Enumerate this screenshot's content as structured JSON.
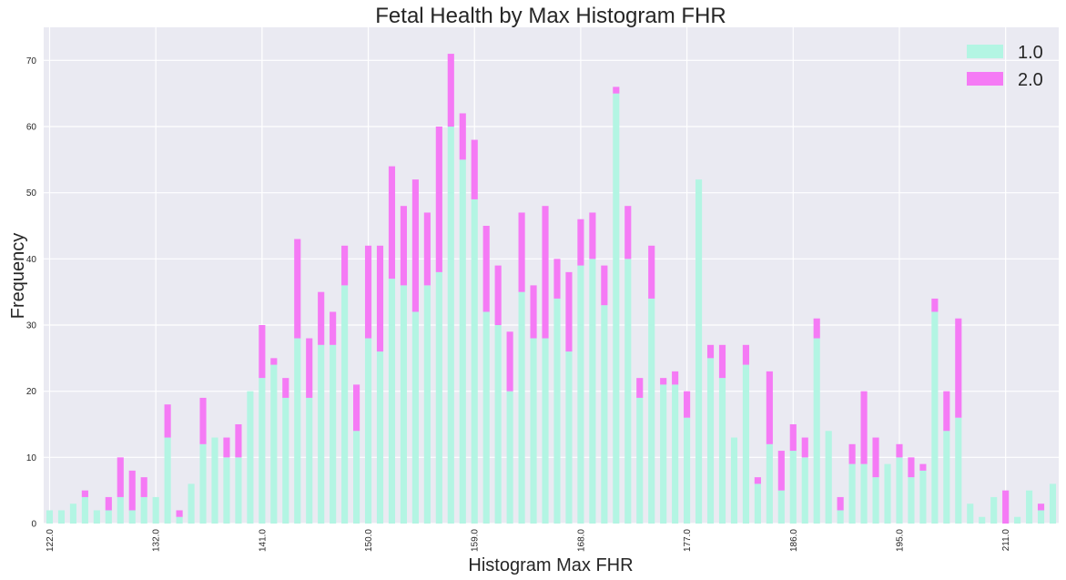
{
  "chart_data": {
    "type": "bar",
    "stacked": true,
    "title": "Fetal Health by Max Histogram FHR",
    "xlabel": "Histogram Max FHR",
    "ylabel": "Frequency",
    "ylim": [
      0,
      75
    ],
    "yticks": [
      0,
      10,
      20,
      30,
      40,
      50,
      60,
      70
    ],
    "grid": true,
    "legend_position": "top-right",
    "xtick_labels": [
      {
        "index": 0,
        "label": "122.0"
      },
      {
        "index": 9,
        "label": "132.0"
      },
      {
        "index": 18,
        "label": "141.0"
      },
      {
        "index": 27,
        "label": "150.0"
      },
      {
        "index": 36,
        "label": "159.0"
      },
      {
        "index": 45,
        "label": "168.0"
      },
      {
        "index": 54,
        "label": "177.0"
      },
      {
        "index": 63,
        "label": "186.0"
      },
      {
        "index": 72,
        "label": "195.0"
      },
      {
        "index": 81,
        "label": "211.0"
      }
    ],
    "series": [
      {
        "name": "1.0",
        "color": "#b3f5e3",
        "values": [
          2,
          2,
          3,
          4,
          2,
          2,
          4,
          2,
          4,
          4,
          13,
          1,
          6,
          12,
          13,
          10,
          10,
          20,
          22,
          24,
          19,
          28,
          19,
          27,
          27,
          36,
          14,
          28,
          26,
          37,
          36,
          32,
          36,
          38,
          60,
          55,
          49,
          32,
          30,
          20,
          35,
          28,
          28,
          34,
          26,
          39,
          40,
          33,
          65,
          40,
          19,
          34,
          21,
          21,
          16,
          52,
          25,
          22,
          13,
          24,
          6,
          12,
          5,
          11,
          10,
          28,
          14,
          2,
          9,
          9,
          7,
          9,
          10,
          7,
          8,
          32,
          14,
          16,
          3,
          1,
          4,
          0,
          1,
          5,
          2,
          6
        ]
      },
      {
        "name": "2.0",
        "color": "#f57af5",
        "values": [
          0,
          0,
          0,
          1,
          0,
          2,
          6,
          6,
          3,
          0,
          5,
          1,
          0,
          7,
          0,
          3,
          5,
          0,
          8,
          1,
          3,
          15,
          9,
          8,
          5,
          6,
          7,
          14,
          16,
          17,
          12,
          20,
          11,
          22,
          11,
          7,
          9,
          13,
          9,
          9,
          12,
          8,
          20,
          6,
          12,
          7,
          7,
          6,
          1,
          8,
          3,
          8,
          1,
          2,
          4,
          0,
          2,
          5,
          0,
          3,
          1,
          11,
          6,
          4,
          3,
          3,
          0,
          2,
          3,
          11,
          6,
          0,
          2,
          3,
          1,
          2,
          6,
          15,
          0,
          0,
          0,
          5,
          0,
          0,
          1,
          0
        ]
      }
    ]
  }
}
